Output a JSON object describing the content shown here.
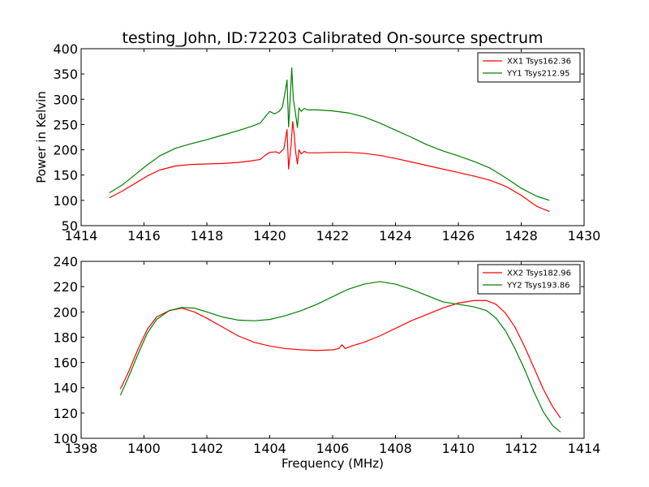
{
  "figure": {
    "title": "testing_John, ID:72203 Calibrated On-source spectrum"
  },
  "chart_data": [
    {
      "type": "line",
      "title": "testing_John, ID:72203 Calibrated On-source spectrum",
      "xlabel": "",
      "ylabel": "Power in Kelvin",
      "xlim": [
        1414,
        1430
      ],
      "ylim": [
        50,
        400
      ],
      "xticks": [
        1414,
        1416,
        1418,
        1420,
        1422,
        1424,
        1426,
        1428,
        1430
      ],
      "yticks": [
        50,
        100,
        150,
        200,
        250,
        300,
        350,
        400
      ],
      "grid": false,
      "legend_position": "top-right",
      "series": [
        {
          "name": "XX1 Tsys162.36",
          "color": "#ff0000",
          "points": [
            [
              1414.9,
              105
            ],
            [
              1415.3,
              118
            ],
            [
              1415.7,
              133
            ],
            [
              1416.1,
              148
            ],
            [
              1416.5,
              160
            ],
            [
              1417.0,
              168
            ],
            [
              1417.5,
              171
            ],
            [
              1418.0,
              172
            ],
            [
              1418.5,
              173
            ],
            [
              1419.0,
              175
            ],
            [
              1419.4,
              178
            ],
            [
              1419.7,
              181
            ],
            [
              1419.85,
              189
            ],
            [
              1420.0,
              195
            ],
            [
              1420.2,
              196
            ],
            [
              1420.3,
              193
            ],
            [
              1420.45,
              202
            ],
            [
              1420.55,
              240
            ],
            [
              1420.6,
              162
            ],
            [
              1420.68,
              210
            ],
            [
              1420.73,
              256
            ],
            [
              1420.78,
              230
            ],
            [
              1420.82,
              198
            ],
            [
              1420.88,
              172
            ],
            [
              1420.93,
              200
            ],
            [
              1421.0,
              192
            ],
            [
              1421.1,
              197
            ],
            [
              1421.2,
              194
            ],
            [
              1421.5,
              194
            ],
            [
              1422.0,
              195
            ],
            [
              1422.5,
              195
            ],
            [
              1423.0,
              193
            ],
            [
              1423.5,
              189
            ],
            [
              1424.0,
              183
            ],
            [
              1424.5,
              176
            ],
            [
              1425.0,
              169
            ],
            [
              1425.5,
              162
            ],
            [
              1426.0,
              155
            ],
            [
              1426.5,
              148
            ],
            [
              1427.0,
              140
            ],
            [
              1427.5,
              128
            ],
            [
              1428.0,
              110
            ],
            [
              1428.5,
              88
            ],
            [
              1428.9,
              78
            ]
          ]
        },
        {
          "name": "YY1 Tsys212.95",
          "color": "#008000",
          "points": [
            [
              1414.9,
              115
            ],
            [
              1415.3,
              130
            ],
            [
              1415.7,
              150
            ],
            [
              1416.1,
              170
            ],
            [
              1416.5,
              188
            ],
            [
              1417.0,
              203
            ],
            [
              1417.5,
              212
            ],
            [
              1418.0,
              220
            ],
            [
              1418.5,
              229
            ],
            [
              1419.0,
              238
            ],
            [
              1419.4,
              246
            ],
            [
              1419.7,
              253
            ],
            [
              1419.85,
              265
            ],
            [
              1420.0,
              276
            ],
            [
              1420.15,
              271
            ],
            [
              1420.3,
              276
            ],
            [
              1420.4,
              284
            ],
            [
              1420.5,
              318
            ],
            [
              1420.55,
              338
            ],
            [
              1420.6,
              245
            ],
            [
              1420.65,
              300
            ],
            [
              1420.7,
              362
            ],
            [
              1420.75,
              300
            ],
            [
              1420.82,
              272
            ],
            [
              1420.88,
              244
            ],
            [
              1420.93,
              283
            ],
            [
              1421.0,
              276
            ],
            [
              1421.1,
              282
            ],
            [
              1421.2,
              279
            ],
            [
              1421.5,
              279
            ],
            [
              1422.0,
              277
            ],
            [
              1422.5,
              273
            ],
            [
              1423.0,
              265
            ],
            [
              1423.5,
              253
            ],
            [
              1424.0,
              239
            ],
            [
              1424.5,
              225
            ],
            [
              1425.0,
              210
            ],
            [
              1425.5,
              198
            ],
            [
              1426.0,
              188
            ],
            [
              1426.5,
              177
            ],
            [
              1427.0,
              164
            ],
            [
              1427.5,
              145
            ],
            [
              1428.0,
              124
            ],
            [
              1428.5,
              108
            ],
            [
              1428.9,
              100
            ]
          ]
        }
      ]
    },
    {
      "type": "line",
      "title": "",
      "xlabel": "Frequency (MHz)",
      "ylabel": "",
      "xlim": [
        1398,
        1414
      ],
      "ylim": [
        100,
        240
      ],
      "xticks": [
        1398,
        1400,
        1402,
        1404,
        1406,
        1408,
        1410,
        1412,
        1414
      ],
      "yticks": [
        100,
        120,
        140,
        160,
        180,
        200,
        220,
        240
      ],
      "grid": false,
      "legend_position": "top-right",
      "series": [
        {
          "name": "XX2 Tsys182.96",
          "color": "#ff0000",
          "points": [
            [
              1399.25,
              139
            ],
            [
              1399.5,
              152
            ],
            [
              1399.8,
              170
            ],
            [
              1400.1,
              186
            ],
            [
              1400.4,
              196
            ],
            [
              1400.8,
              201
            ],
            [
              1401.2,
              203
            ],
            [
              1401.6,
              200
            ],
            [
              1402.0,
              195
            ],
            [
              1402.5,
              188
            ],
            [
              1403.0,
              181
            ],
            [
              1403.5,
              176
            ],
            [
              1404.0,
              173
            ],
            [
              1404.5,
              171
            ],
            [
              1405.0,
              170
            ],
            [
              1405.5,
              169.5
            ],
            [
              1406.0,
              170
            ],
            [
              1406.2,
              171
            ],
            [
              1406.3,
              174
            ],
            [
              1406.4,
              171
            ],
            [
              1406.6,
              173
            ],
            [
              1407.0,
              176
            ],
            [
              1407.5,
              181
            ],
            [
              1408.0,
              187
            ],
            [
              1408.5,
              193
            ],
            [
              1409.0,
              198
            ],
            [
              1409.5,
              203
            ],
            [
              1410.0,
              207
            ],
            [
              1410.5,
              209
            ],
            [
              1410.9,
              209
            ],
            [
              1411.2,
              206
            ],
            [
              1411.5,
              199
            ],
            [
              1411.8,
              188
            ],
            [
              1412.1,
              173
            ],
            [
              1412.4,
              156
            ],
            [
              1412.7,
              139
            ],
            [
              1413.0,
              125
            ],
            [
              1413.25,
              116
            ]
          ]
        },
        {
          "name": "YY2 Tsys193.86",
          "color": "#008000",
          "points": [
            [
              1399.25,
              134
            ],
            [
              1399.5,
              148
            ],
            [
              1399.8,
              166
            ],
            [
              1400.1,
              183
            ],
            [
              1400.4,
              194
            ],
            [
              1400.8,
              201
            ],
            [
              1401.2,
              203.5
            ],
            [
              1401.6,
              203
            ],
            [
              1402.0,
              200
            ],
            [
              1402.5,
              196
            ],
            [
              1403.0,
              193.5
            ],
            [
              1403.5,
              193
            ],
            [
              1404.0,
              194
            ],
            [
              1404.5,
              197
            ],
            [
              1405.0,
              201
            ],
            [
              1405.5,
              206
            ],
            [
              1406.0,
              212
            ],
            [
              1406.5,
              218
            ],
            [
              1407.0,
              222
            ],
            [
              1407.5,
              224
            ],
            [
              1408.0,
              222
            ],
            [
              1408.5,
              218
            ],
            [
              1409.0,
              213
            ],
            [
              1409.5,
              208
            ],
            [
              1410.0,
              206
            ],
            [
              1410.5,
              204
            ],
            [
              1410.9,
              201
            ],
            [
              1411.2,
              195
            ],
            [
              1411.5,
              185
            ],
            [
              1411.8,
              171
            ],
            [
              1412.1,
              155
            ],
            [
              1412.4,
              137
            ],
            [
              1412.7,
              121
            ],
            [
              1413.0,
              110
            ],
            [
              1413.25,
              105
            ]
          ]
        }
      ]
    }
  ]
}
